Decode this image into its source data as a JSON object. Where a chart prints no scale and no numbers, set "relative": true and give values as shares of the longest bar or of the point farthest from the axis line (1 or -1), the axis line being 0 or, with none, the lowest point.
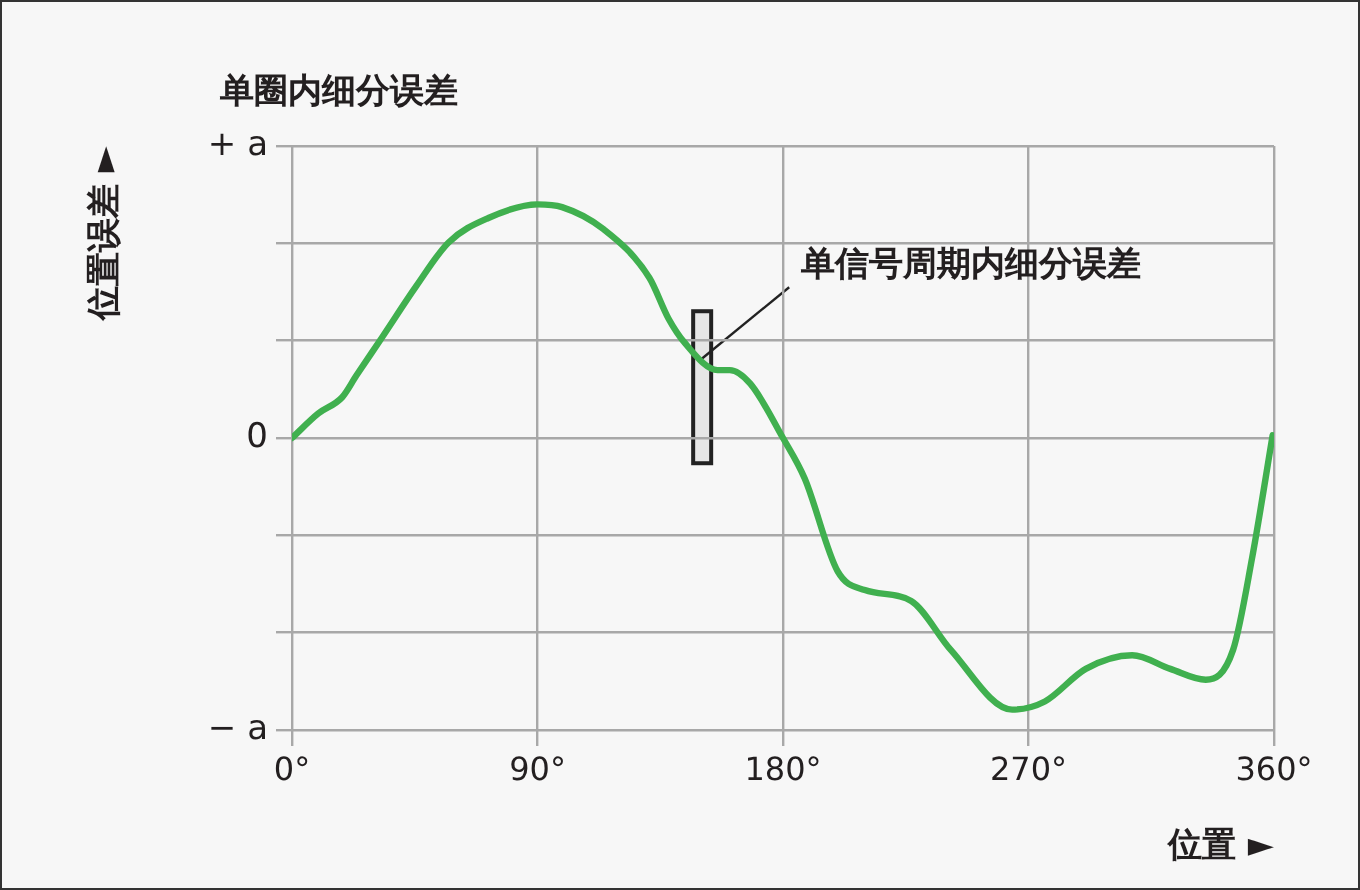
{
  "chart_data": {
    "type": "line",
    "title": "单圈内细分误差",
    "xlabel": "位置 ►",
    "ylabel": "位置误差 ►",
    "x": [
      0,
      9.6,
      18.4,
      23.6,
      33,
      45.6,
      57.4,
      72,
      90,
      99,
      114,
      131,
      138,
      144,
      156,
      160.5,
      168,
      180,
      188,
      200,
      210,
      227,
      241.5,
      264,
      276,
      291,
      308,
      322,
      335,
      345,
      352,
      359.5
    ],
    "series": [
      {
        "color": "#40b04f",
        "values": [
          0,
          0.09,
          0.15,
          0.23,
          0.37,
          0.56,
          0.72,
          0.81,
          0.86,
          0.85,
          0.77,
          0.59,
          0.44,
          0.35,
          0.25,
          0.25,
          0.2,
          0,
          -0.15,
          -0.49,
          -0.56,
          -0.6,
          -0.78,
          -1,
          -0.97,
          -0.85,
          -0.8,
          -0.85,
          -0.89,
          -0.78,
          -0.44,
          0.01
        ]
      }
    ],
    "relative": true,
    "xlim": [
      0,
      360
    ],
    "xticks": [
      {
        "value": 0,
        "label": "0°"
      },
      {
        "value": 90,
        "label": "90°"
      },
      {
        "value": 180,
        "label": "180°"
      },
      {
        "value": 270,
        "label": "270°"
      },
      {
        "value": 360,
        "label": "360°"
      }
    ],
    "annotations": [
      "+ a",
      "0",
      "− a",
      {
        "text": "单信号周期内细分误差",
        "x": 150,
        "y": 0.29
      }
    ],
    "grid": true,
    "legend": false,
    "marker": "none",
    "line_style": "solid"
  }
}
